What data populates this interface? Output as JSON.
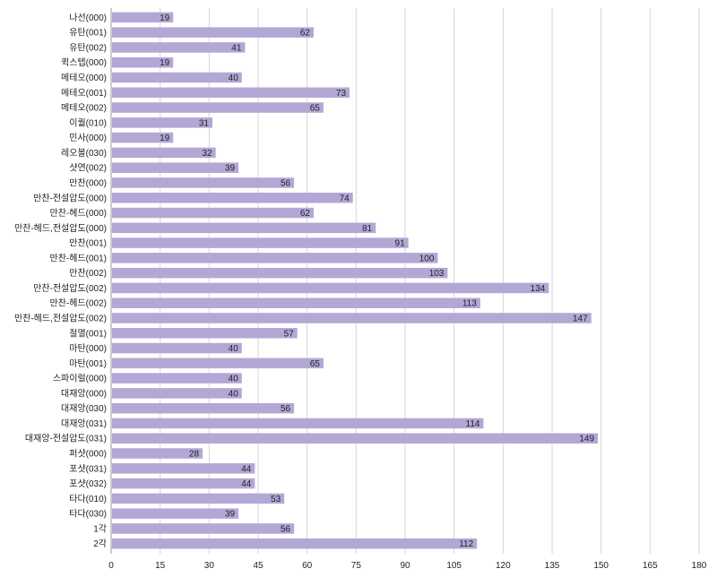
{
  "chart_data": {
    "type": "bar",
    "orientation": "horizontal",
    "bar_color": "#b3a7d6",
    "grid": true,
    "title": "",
    "xlabel": "",
    "ylabel": "",
    "xlim": [
      0,
      180
    ],
    "x_ticks": [
      "0",
      "15",
      "30",
      "45",
      "60",
      "75",
      "90",
      "105",
      "120",
      "135",
      "150",
      "165",
      "180"
    ],
    "categories": [
      "나선(000)",
      "유탄(001)",
      "유탄(002)",
      "퀵스텝(000)",
      "메테오(000)",
      "메테오(001)",
      "메테오(002)",
      "이퀄(010)",
      "민사(000)",
      "레오볼(030)",
      "샷연(002)",
      "만찬(000)",
      "만찬-전설압도(000)",
      "만찬-헤드(000)",
      "만찬-헤드,전설압도(000)",
      "만찬(001)",
      "만찬-헤드(001)",
      "만찬(002)",
      "만찬-전설압도(002)",
      "만찬-헤드(002)",
      "만찬-헤드,전설압도(002)",
      "절멸(001)",
      "마탄(000)",
      "마탄(001)",
      "스파이럴(000)",
      "대재앙(000)",
      "대재앙(030)",
      "대재앙(031)",
      "대재앙-전설압도(031)",
      "퍼샷(000)",
      "포샷(031)",
      "포샷(032)",
      "타다(010)",
      "타다(030)",
      "1각",
      "2각"
    ],
    "values": [
      19,
      62,
      41,
      19,
      40,
      73,
      65,
      31,
      19,
      32,
      39,
      56,
      74,
      62,
      81,
      91,
      100,
      103,
      134,
      113,
      147,
      57,
      40,
      65,
      40,
      40,
      56,
      114,
      149,
      28,
      44,
      44,
      53,
      39,
      56,
      112
    ]
  }
}
